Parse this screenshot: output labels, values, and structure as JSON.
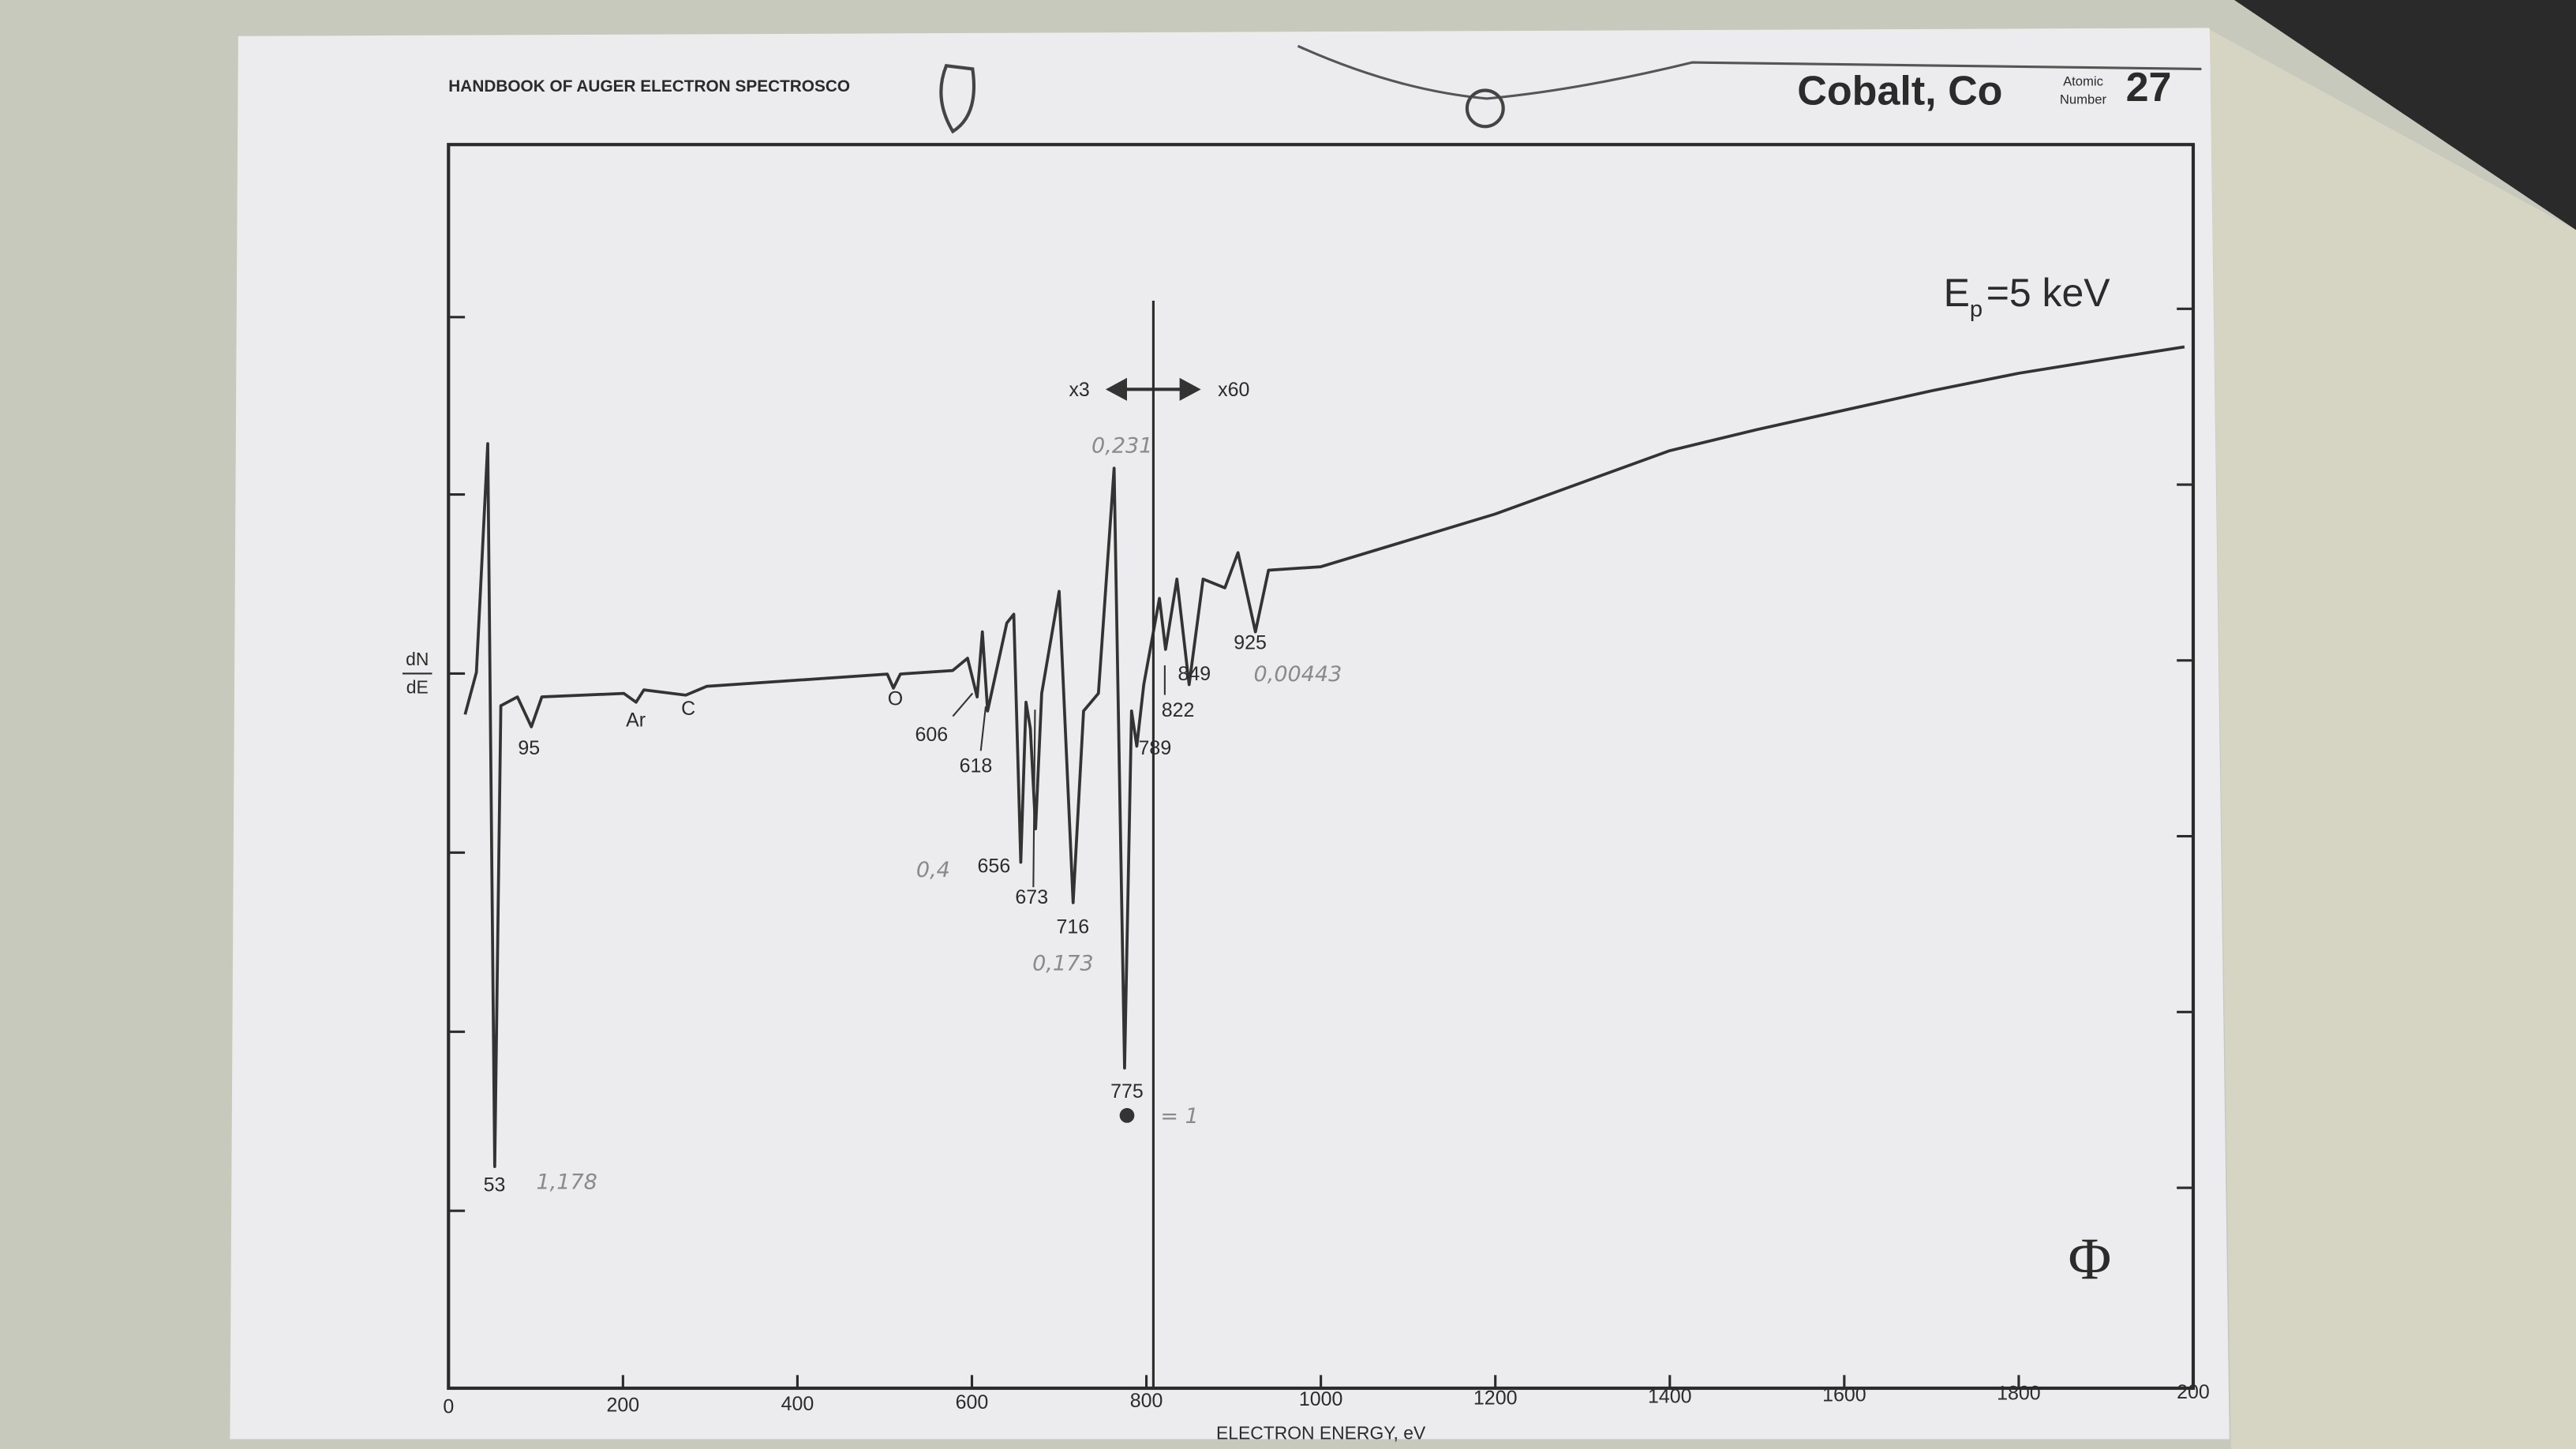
{
  "header": {
    "book": "HANDBOOK OF AUGER ELECTRON SPECTROSCO",
    "element": "Cobalt,  Co",
    "atomic": "Atomic",
    "number": "Number",
    "atomic_number": "27"
  },
  "chart_data": {
    "type": "line",
    "ep_label": {
      "main": "E",
      "sub": "p",
      "rest": "=5 keV"
    },
    "y_label": {
      "top": "dN",
      "bottom": "dE"
    },
    "x_label": "ELECTRON ENERGY, eV",
    "x": [
      19,
      32,
      45,
      53,
      60,
      79,
      95,
      107,
      201,
      215,
      224,
      272,
      296,
      503,
      510,
      518,
      578,
      595,
      606,
      612,
      618,
      640,
      648,
      656,
      662,
      667,
      673,
      680,
      700,
      716,
      728,
      745,
      763,
      775,
      783,
      789,
      797,
      815,
      822,
      835,
      849,
      865,
      890,
      905,
      925,
      940,
      1000,
      1100,
      1200,
      1300,
      1400,
      1500,
      1600,
      1700,
      1800,
      1900,
      1990
    ],
    "values": [
      3.83,
      4.07,
      5.37,
      1.26,
      3.88,
      3.93,
      3.76,
      3.93,
      3.95,
      3.9,
      3.97,
      3.94,
      3.99,
      4.06,
      3.98,
      4.06,
      4.08,
      4.15,
      3.93,
      4.3,
      3.85,
      4.35,
      4.4,
      2.99,
      3.9,
      3.75,
      3.18,
      3.95,
      4.53,
      2.76,
      3.85,
      3.95,
      5.23,
      1.82,
      3.85,
      3.65,
      4.0,
      4.49,
      4.2,
      4.6,
      4.0,
      4.6,
      4.55,
      4.75,
      4.3,
      4.65,
      4.67,
      4.82,
      4.97,
      5.15,
      5.33,
      5.45,
      5.56,
      5.67,
      5.77,
      5.85,
      5.92
    ],
    "color": "#333333",
    "xlim": [
      0,
      2000
    ],
    "ylim": [
      0,
      7.07
    ],
    "xticks": [
      0,
      200,
      400,
      600,
      800,
      1000,
      1200,
      1400,
      1600,
      1800,
      {
        "value": 2000,
        "label": "200"
      }
    ],
    "scale_change_at": 808,
    "annotations": [
      "53",
      "95",
      "Ar",
      "C",
      "O",
      "606",
      "618",
      "656",
      "673",
      "716",
      "775",
      "789",
      "822",
      "849",
      "925",
      "x3",
      "x60"
    ],
    "handwritten": [
      "1,178",
      "0,231",
      "0,4",
      "0,173",
      "= 1",
      "0,00443"
    ],
    "logo": "Φ"
  }
}
